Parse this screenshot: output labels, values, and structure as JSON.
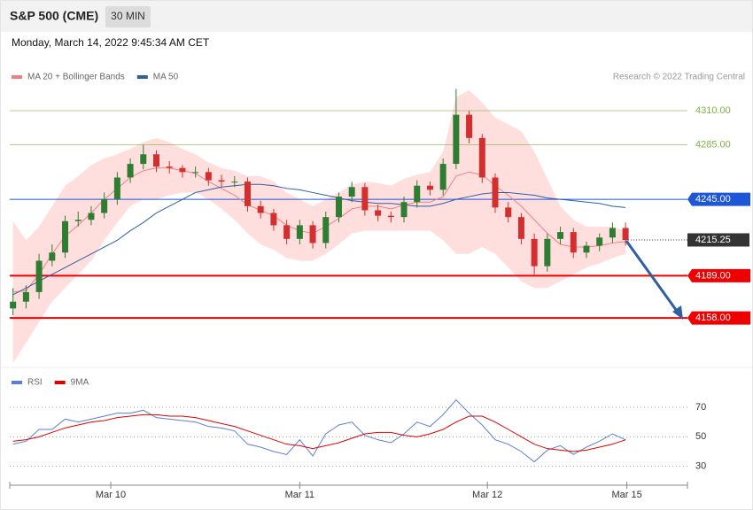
{
  "header": {
    "title": "S&P 500 (CME)",
    "interval": "30 MIN",
    "timestamp": "Monday, March 14, 2022 9:45:34 AM CET"
  },
  "credit": "Research © 2022 Trading Central",
  "chart_data": [
    {
      "type": "candlestick",
      "up_color": "#2e7d32",
      "down_color": "#d32f2f",
      "xlim": [
        -0.25,
        51.75
      ],
      "ylim": [
        4125,
        4330
      ],
      "open": [
        4165,
        4170,
        4177,
        4200,
        4206,
        4229,
        4230,
        4235,
        4245,
        4261,
        4271,
        4278,
        4269,
        4268,
        4265,
        4265,
        4259,
        4258,
        4258,
        4240,
        4235,
        4226,
        4216,
        4226,
        4213,
        4232,
        4247,
        4254,
        4237,
        4233,
        4232,
        4243,
        4255,
        4252,
        4271,
        4307,
        4290,
        4261,
        4239,
        4232,
        4216,
        4196,
        4216,
        4221,
        4206,
        4211,
        4217,
        4224
      ],
      "high": [
        4180,
        4182,
        4205,
        4212,
        4233,
        4236,
        4240,
        4250,
        4265,
        4275,
        4285,
        4281,
        4273,
        4270,
        4269,
        4268,
        4263,
        4262,
        4261,
        4244,
        4238,
        4230,
        4230,
        4229,
        4236,
        4250,
        4258,
        4257,
        4241,
        4236,
        4247,
        4259,
        4258,
        4275,
        4326,
        4310,
        4293,
        4264,
        4243,
        4235,
        4220,
        4220,
        4225,
        4224,
        4214,
        4220,
        4228,
        4228
      ],
      "low": [
        4160,
        4165,
        4172,
        4196,
        4202,
        4225,
        4226,
        4231,
        4241,
        4257,
        4267,
        4265,
        4264,
        4261,
        4261,
        4255,
        4254,
        4254,
        4236,
        4231,
        4222,
        4212,
        4212,
        4209,
        4209,
        4228,
        4243,
        4233,
        4229,
        4228,
        4228,
        4239,
        4248,
        4248,
        4267,
        4286,
        4257,
        4235,
        4228,
        4212,
        4190,
        4192,
        4212,
        4202,
        4202,
        4207,
        4213,
        4211
      ],
      "close": [
        4170,
        4177,
        4200,
        4206,
        4229,
        4230,
        4235,
        4245,
        4261,
        4271,
        4278,
        4269,
        4268,
        4265,
        4265,
        4259,
        4258,
        4258,
        4240,
        4235,
        4226,
        4216,
        4226,
        4213,
        4232,
        4247,
        4254,
        4237,
        4233,
        4232,
        4243,
        4255,
        4252,
        4271,
        4307,
        4290,
        4261,
        4239,
        4232,
        4216,
        4196,
        4216,
        4221,
        4206,
        4211,
        4217,
        4224,
        4215.25
      ],
      "bands": {
        "name": "MA 20 + Bollinger Bands",
        "color": "#f08080",
        "fill": "#ffdede",
        "upper": [
          4229,
          4215,
          4225,
          4240,
          4255,
          4262,
          4270,
          4275,
          4278,
          4282,
          4287,
          4290,
          4287,
          4282,
          4278,
          4272,
          4268,
          4266,
          4262,
          4262,
          4258,
          4250,
          4245,
          4240,
          4245,
          4250,
          4256,
          4258,
          4257,
          4255,
          4260,
          4263,
          4265,
          4280,
          4320,
          4325,
          4316,
          4305,
          4300,
          4295,
          4280,
          4260,
          4240,
          4230,
          4225,
          4225,
          4225,
          4222
        ],
        "lower": [
          4125,
          4140,
          4155,
          4170,
          4180,
          4190,
          4200,
          4215,
          4228,
          4240,
          4245,
          4245,
          4248,
          4250,
          4250,
          4245,
          4238,
          4230,
          4220,
          4212,
          4208,
          4202,
          4200,
          4200,
          4205,
          4212,
          4220,
          4222,
          4222,
          4222,
          4222,
          4222,
          4222,
          4215,
          4205,
          4205,
          4210,
          4205,
          4195,
          4185,
          4180,
          4180,
          4185,
          4190,
          4195,
          4198,
          4202,
          4205
        ],
        "values": [
          4177,
          4178,
          4190,
          4205,
          4218,
          4226,
          4235,
          4245,
          4253,
          4261,
          4266,
          4268,
          4268,
          4266,
          4264,
          4258,
          4253,
          4248,
          4241,
          4237,
          4233,
          4226,
          4222,
          4220,
          4225,
          4231,
          4238,
          4240,
          4240,
          4238,
          4241,
          4243,
          4243,
          4247,
          4262,
          4265,
          4263,
          4255,
          4248,
          4240,
          4230,
          4220,
          4212,
          4210,
          4210,
          4211,
          4213,
          4214
        ]
      },
      "series": [
        {
          "name": "MA 50",
          "color": "#2f5fa0",
          "values": [
            4175,
            4180,
            4185,
            4190,
            4195,
            4200,
            4205,
            4210,
            4215,
            4222,
            4228,
            4235,
            4240,
            4245,
            4250,
            4252,
            4254,
            4255,
            4256,
            4256,
            4255,
            4253,
            4252,
            4250,
            4248,
            4246,
            4244,
            4243,
            4242,
            4242,
            4241,
            4240,
            4240,
            4242,
            4245,
            4247,
            4249,
            4250,
            4250,
            4249,
            4248,
            4246,
            4245,
            4244,
            4243,
            4242,
            4240,
            4239
          ]
        }
      ],
      "levels": [
        {
          "value": 4310,
          "label": "4310.00",
          "color": "#7cb342",
          "style": "thin"
        },
        {
          "value": 4285,
          "label": "4285.00",
          "color": "#7cb342",
          "style": "thin"
        },
        {
          "value": 4245,
          "label": "4245.00",
          "color": "#1e56d8",
          "style": "box"
        },
        {
          "value": 4215.25,
          "color": "#333333",
          "style": "current"
        },
        {
          "value": 4189,
          "label": "4189.00",
          "color": "#ee0000",
          "style": "thick"
        },
        {
          "value": 4158,
          "label": "4158.00",
          "color": "#ee0000",
          "style": "thick"
        }
      ]
    },
    {
      "type": "line",
      "xlim": [
        -0.25,
        51.75
      ],
      "ylim": [
        19,
        82
      ],
      "yticks": [
        70,
        50,
        30
      ],
      "xticks": [
        {
          "value": 7.5,
          "label": "Mar 10"
        },
        {
          "value": 22.0,
          "label": "Mar 11"
        },
        {
          "value": 36.4,
          "label": "Mar 12"
        },
        {
          "value": 47.1,
          "label": "Mar 15"
        }
      ],
      "series": [
        {
          "name": "RSI",
          "color": "#5b7fd6",
          "values": [
            45,
            47,
            55,
            55,
            62,
            60,
            62,
            64,
            66,
            66,
            68,
            63,
            62,
            61,
            60,
            57,
            56,
            54,
            45,
            43,
            40,
            38,
            48,
            37,
            52,
            58,
            60,
            51,
            48,
            46,
            52,
            60,
            57,
            65,
            75,
            66,
            58,
            48,
            45,
            40,
            33,
            41,
            44,
            38,
            43,
            47,
            52,
            48
          ]
        },
        {
          "name": "9MA",
          "color": "#e00000",
          "values": [
            47,
            48,
            50,
            53,
            56,
            58,
            60,
            61,
            63,
            64,
            65,
            65,
            64,
            64,
            63,
            61,
            59,
            57,
            54,
            51,
            48,
            45,
            44,
            42,
            44,
            46,
            49,
            52,
            53,
            53,
            51,
            50,
            52,
            55,
            60,
            64,
            64,
            60,
            55,
            50,
            45,
            42,
            41,
            40,
            41,
            43,
            45,
            48
          ]
        }
      ]
    }
  ]
}
